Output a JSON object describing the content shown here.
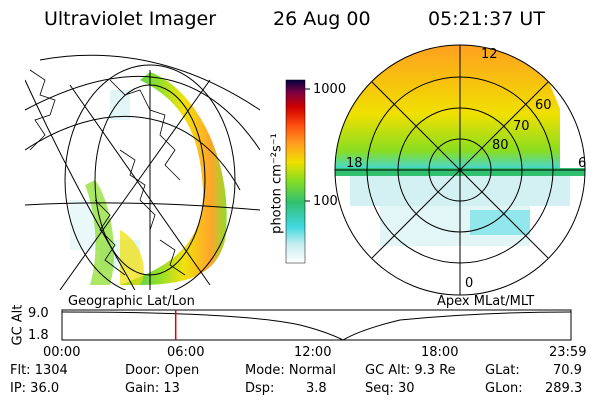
{
  "header": {
    "instrument": "Ultraviolet Imager",
    "date": "26 Aug 00",
    "time": "05:21:37 UT"
  },
  "maps": {
    "left_label": "Geographic Lat/Lon",
    "right_label": "Apex MLat/MLT",
    "polar_lat_labels": [
      "80",
      "70",
      "60"
    ],
    "polar_mlt_labels": {
      "top": "12",
      "left": "18",
      "right": "6",
      "bottom": "0"
    }
  },
  "colorbar": {
    "unit": "photon cm⁻²s⁻¹",
    "scale": "log",
    "ticks": [
      "1000",
      "100"
    ],
    "colors": [
      "#ffffff",
      "#c8eef0",
      "#40d8e0",
      "#30c070",
      "#88dd22",
      "#f0e000",
      "#ffa020",
      "#ff5010",
      "#d00000",
      "#800040",
      "#000040"
    ]
  },
  "altitude_plot": {
    "ylabel": "GC Alt",
    "yticks": [
      "9.0",
      "1.8"
    ],
    "xticks": [
      "00:00",
      "06:00",
      "12:00",
      "18:00",
      "23:59"
    ],
    "current_time_marker_hour": 5.36,
    "marker_color": "#dd0000"
  },
  "footer": {
    "flt": "Flt: 1304",
    "ip": "IP: 36.0",
    "door": "Door: Open",
    "gain": "Gain: 13",
    "mode": "Mode: Normal",
    "dsp_label": "Dsp:",
    "dsp_value": "3.8",
    "gcalt": "GC Alt: 9.3 Re",
    "seq": "Seq: 30",
    "glat_label": "GLat:",
    "glat_value": "70.9",
    "glon_label": "GLon:",
    "glon_value": "289.3"
  }
}
